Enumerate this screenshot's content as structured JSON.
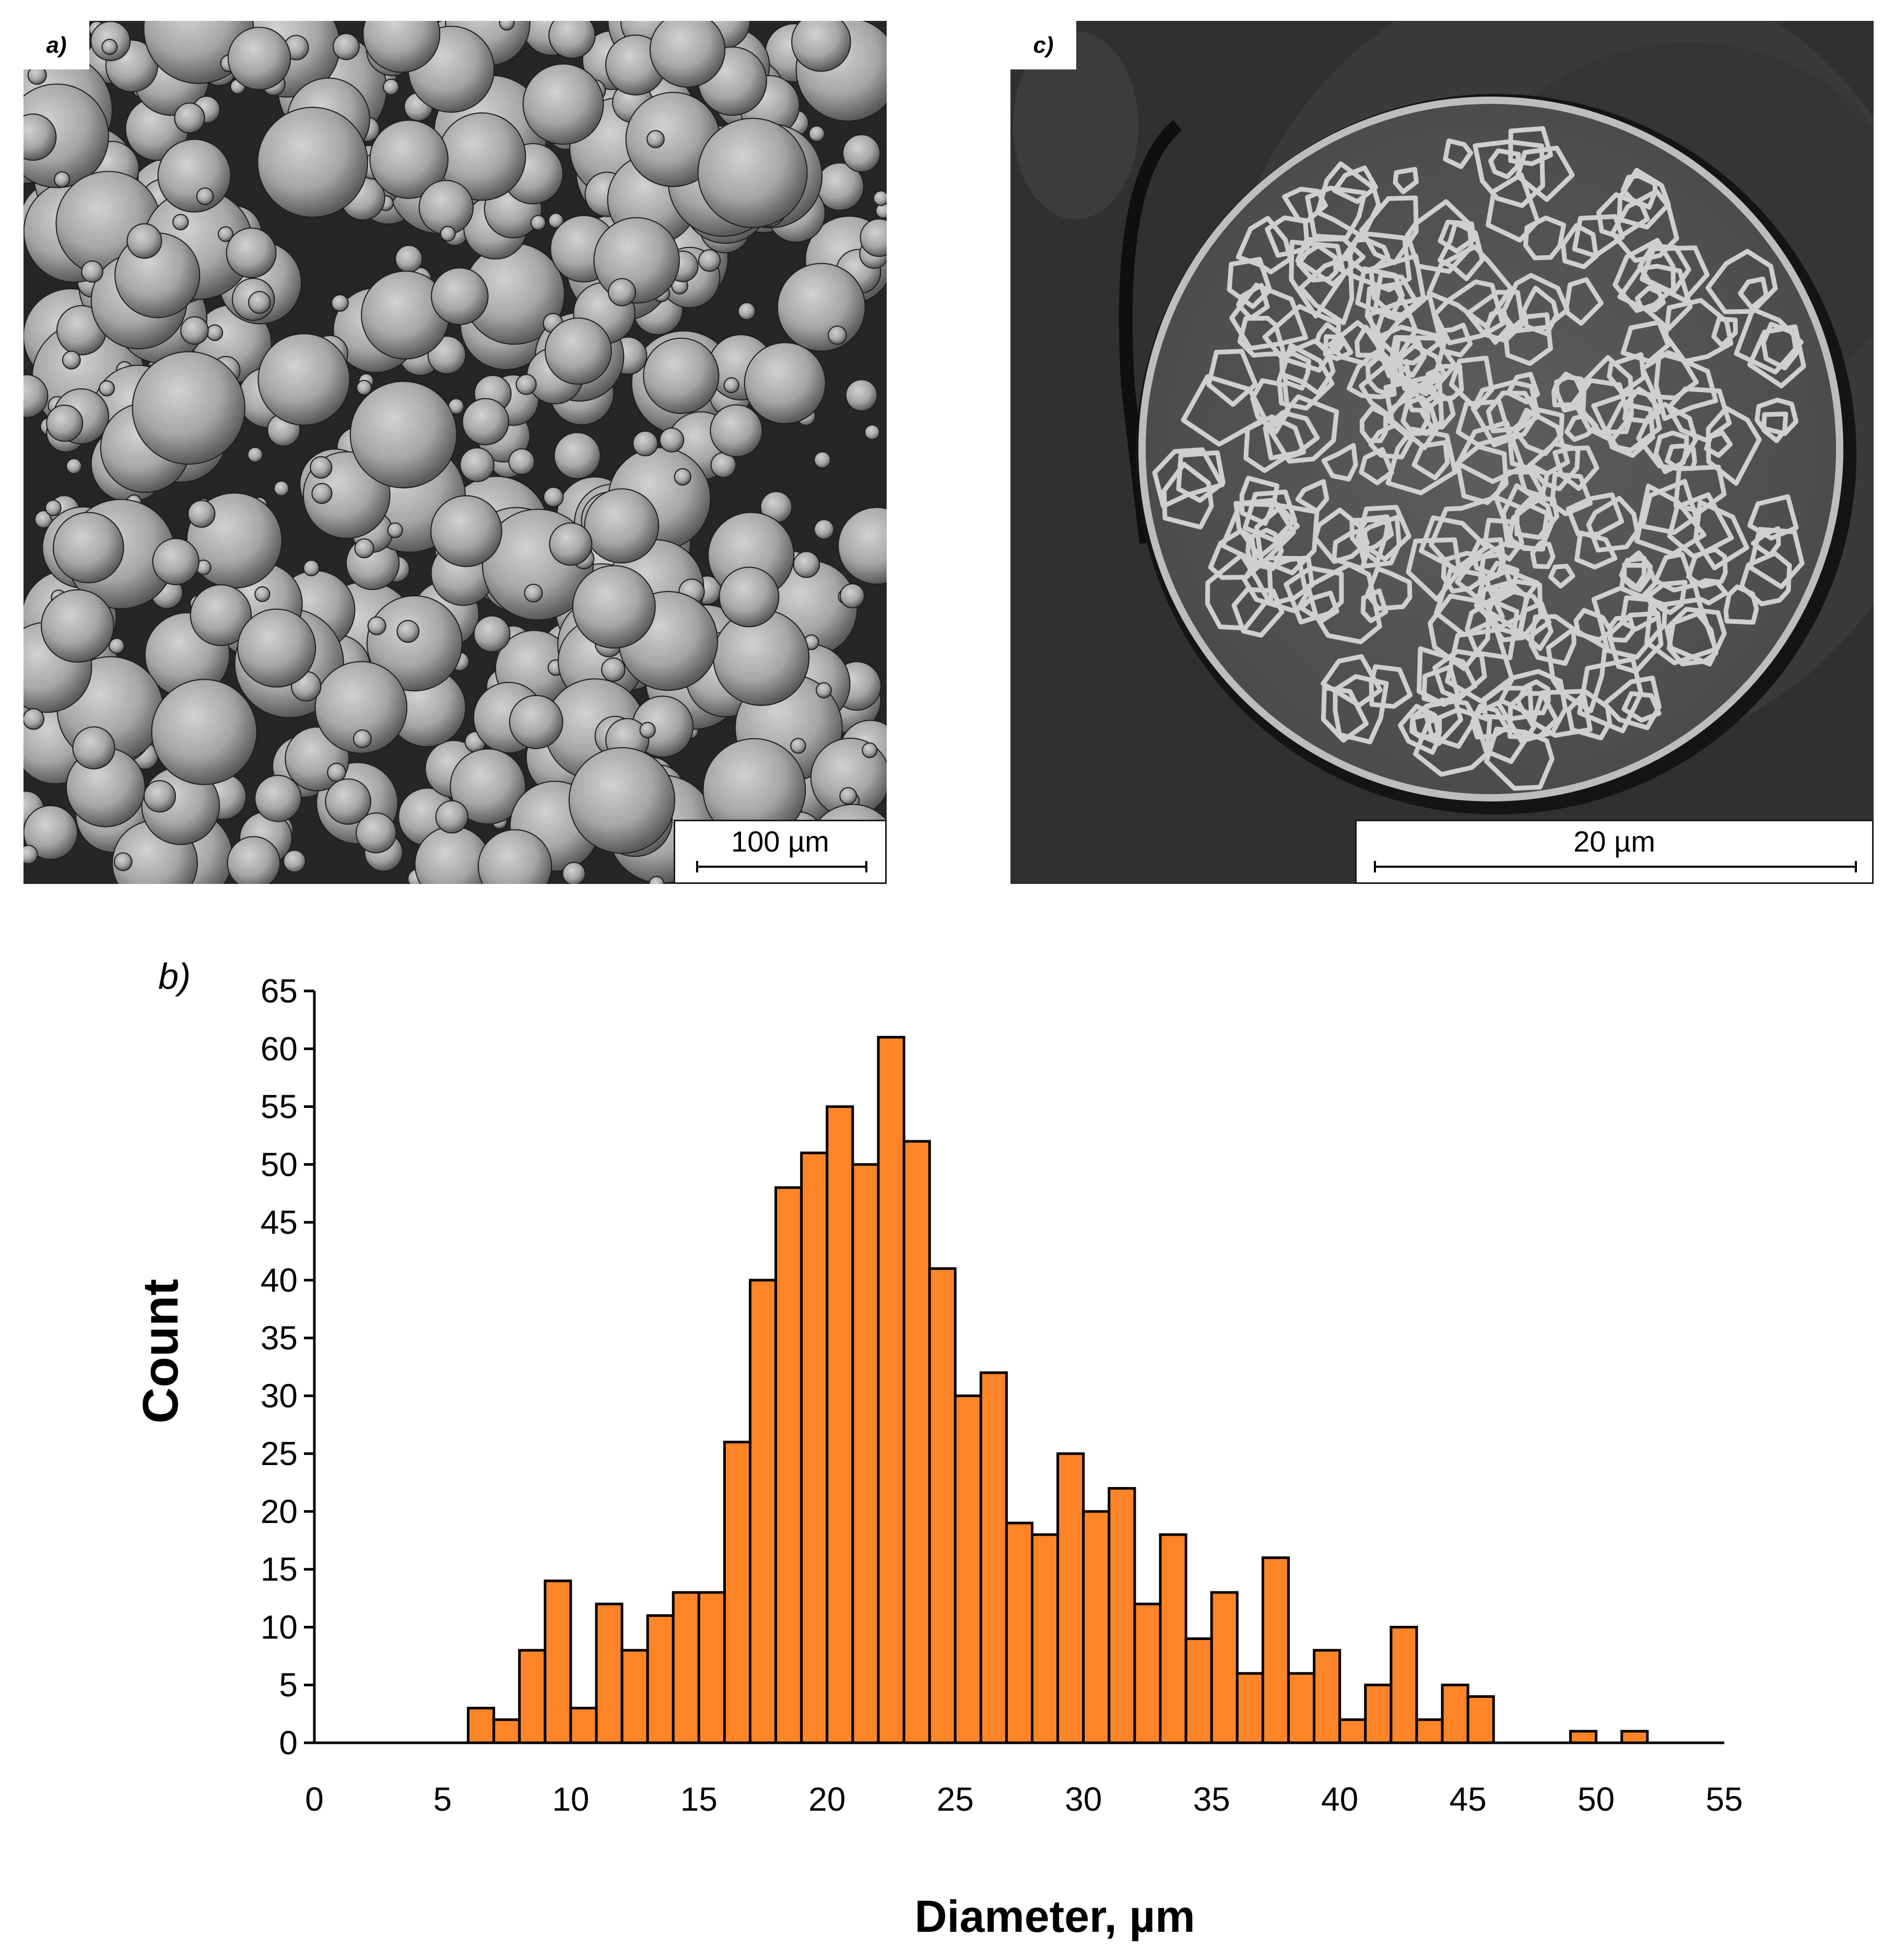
{
  "panels": {
    "a": {
      "tag": "a)",
      "scale_bar": "100 µm"
    },
    "c": {
      "tag": "c)",
      "scale_bar": "20 µm"
    },
    "b": {
      "tag": "b)"
    }
  },
  "chart_data": {
    "type": "bar",
    "title": "",
    "xlabel": "Diameter, µm",
    "ylabel": "Count",
    "xlim": [
      0,
      55
    ],
    "ylim": [
      0,
      65
    ],
    "xticks": [
      0,
      5,
      10,
      15,
      20,
      25,
      30,
      35,
      40,
      45,
      50,
      55
    ],
    "yticks": [
      0,
      5,
      10,
      15,
      20,
      25,
      30,
      35,
      40,
      45,
      50,
      55,
      60,
      65
    ],
    "bin_width": 1,
    "bar_color": "#fd8528",
    "bins_start": [
      6,
      7,
      8,
      9,
      10,
      11,
      12,
      13,
      14,
      15,
      16,
      17,
      18,
      19,
      20,
      21,
      22,
      23,
      24,
      25,
      26,
      27,
      28,
      29,
      30,
      31,
      32,
      33,
      34,
      35,
      36,
      37,
      38,
      39,
      40,
      41,
      42,
      43,
      44,
      45,
      49,
      51
    ],
    "values": [
      3,
      2,
      8,
      14,
      3,
      12,
      8,
      11,
      13,
      13,
      26,
      40,
      48,
      51,
      55,
      50,
      61,
      52,
      41,
      30,
      32,
      19,
      18,
      25,
      20,
      22,
      12,
      18,
      9,
      13,
      6,
      16,
      6,
      8,
      2,
      5,
      10,
      2,
      5,
      4,
      1,
      1
    ],
    "grid": false,
    "legend": "none"
  }
}
